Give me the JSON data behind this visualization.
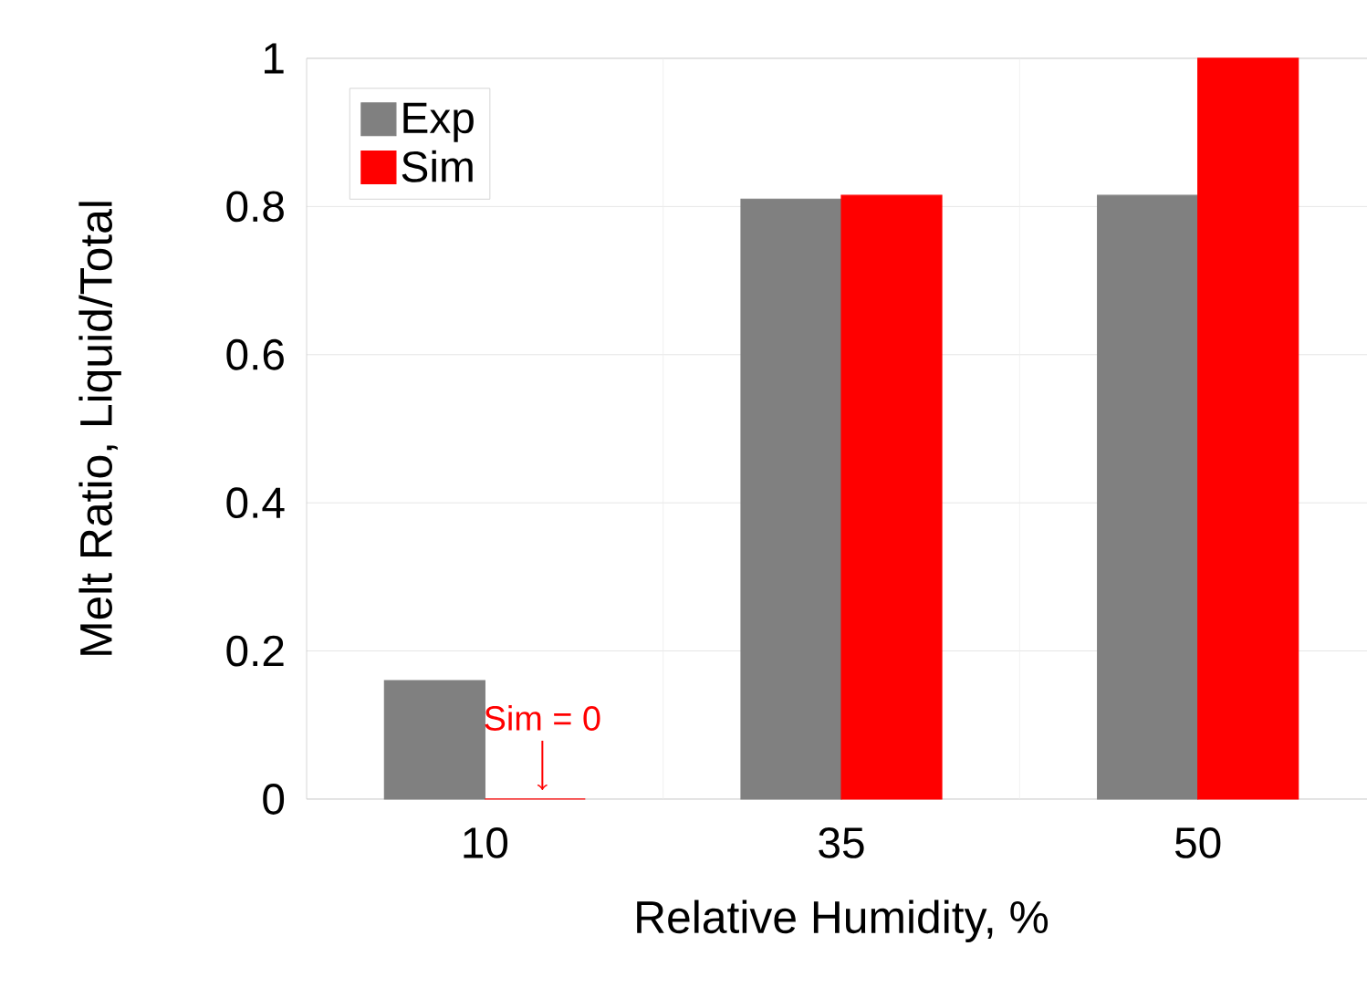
{
  "chart_data": {
    "type": "bar",
    "xlabel": "Relative Humidity, %",
    "ylabel": "Melt Ratio, Liquid/Total",
    "categories": [
      "10",
      "35",
      "50"
    ],
    "series": [
      {
        "name": "Exp",
        "color": "#808080",
        "values": [
          0.16,
          0.81,
          0.815
        ]
      },
      {
        "name": "Sim",
        "color": "#ff0000",
        "values": [
          0,
          0.815,
          1
        ]
      }
    ],
    "ylim": [
      0,
      1
    ],
    "yticks": [
      0,
      0.2,
      0.4,
      0.6,
      0.8,
      1
    ],
    "grid": true,
    "legend": "top left",
    "annotations": [
      {
        "text": "Sim = 0",
        "x": "10",
        "y": 0
      }
    ]
  }
}
